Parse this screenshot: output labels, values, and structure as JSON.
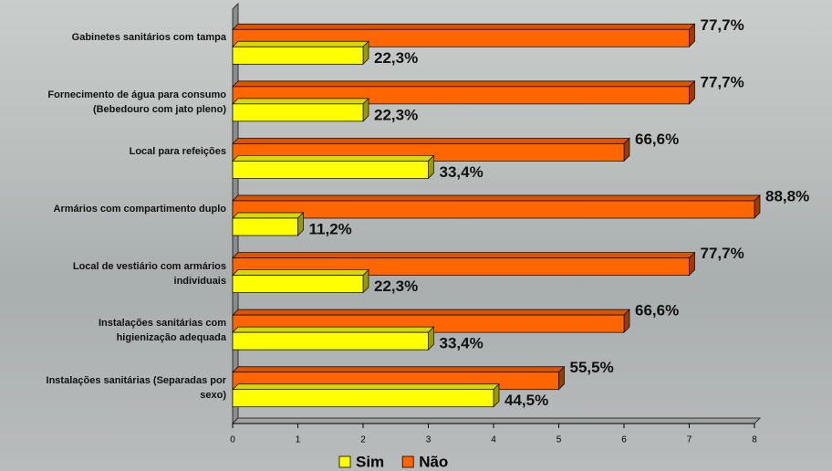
{
  "chart_data": {
    "type": "bar",
    "orientation": "horizontal",
    "categories": [
      "Gabinetes sanitários com tampa",
      "Fornecimento de água para consumo (Bebedouro com jato pleno)",
      "Local para refeições",
      "Armários com compartimento duplo",
      "Local de vestiário com armários individuais",
      "Instalações sanitárias com higienização adequada",
      "Instalações sanitárias (Separadas por sexo)"
    ],
    "series": [
      {
        "name": "Sim",
        "color": "#ffff00",
        "values": [
          2,
          2,
          3,
          1,
          2,
          3,
          4
        ],
        "value_labels": [
          "22,3%",
          "22,3%",
          "33,4%",
          "11,2%",
          "22,3%",
          "33,4%",
          "44,5%"
        ]
      },
      {
        "name": "Não",
        "color": "#ff6600",
        "values": [
          7,
          7,
          6,
          8,
          7,
          6,
          5
        ],
        "value_labels": [
          "77,7%",
          "77,7%",
          "66,6%",
          "88,8%",
          "77,7%",
          "66,6%",
          "55,5%"
        ]
      }
    ],
    "xlim": [
      0,
      8
    ],
    "xticks": [
      0,
      1,
      2,
      3,
      4,
      5,
      6,
      7,
      8
    ],
    "legend": "bottom"
  }
}
